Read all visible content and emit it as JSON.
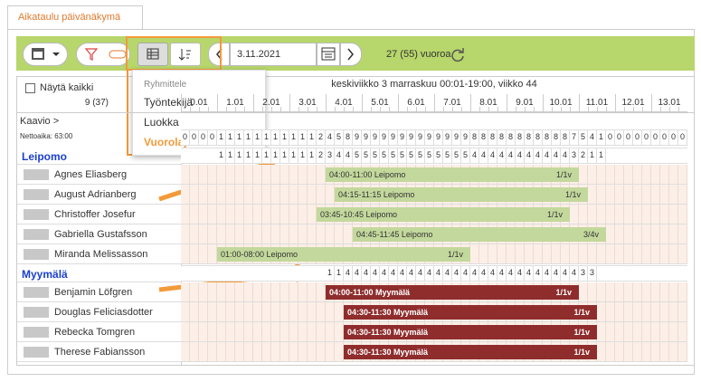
{
  "tab": "Aikataulu päivänäkymä",
  "toolbar": {
    "date": "3.11.2021",
    "shift_count": "27 (55) vuoroa"
  },
  "group_menu": {
    "title": "Ryhmittele",
    "options": [
      "Työntekijä",
      "Luokka",
      "Vuorolaji"
    ],
    "selected": "Vuorolaji"
  },
  "left_panel": {
    "show_all": "Näytä kaikki",
    "count": "9 (37)",
    "chart": "Kaavio",
    "net_time": "Nettoaika: 63:00"
  },
  "day_header": "keskiviikko 3 marraskuu 00:01-19:00, viikko 44",
  "hours": [
    "0.01",
    "1.01",
    "2.01",
    "3.01",
    "4.01",
    "5.01",
    "6.01",
    "7.01",
    "8.01",
    "9.01",
    "10.01",
    "11.01",
    "12.01",
    "13.01"
  ],
  "total_counts": [
    0,
    0,
    0,
    0,
    1,
    1,
    1,
    1,
    1,
    1,
    1,
    1,
    1,
    1,
    1,
    2,
    4,
    5,
    8,
    9,
    9,
    9,
    9,
    9,
    9,
    9,
    9,
    9,
    9,
    9,
    9,
    9,
    8,
    8,
    8,
    8,
    8,
    8,
    8,
    8,
    8,
    8,
    8,
    7,
    5,
    4,
    1,
    0,
    0,
    0,
    0,
    0,
    0,
    0,
    0,
    0
  ],
  "groups": [
    {
      "name": "Leipomo",
      "counts": [
        null,
        null,
        null,
        null,
        1,
        1,
        1,
        1,
        1,
        1,
        1,
        1,
        1,
        1,
        1,
        2,
        3,
        4,
        4,
        5,
        5,
        5,
        5,
        5,
        5,
        5,
        5,
        5,
        5,
        5,
        5,
        5,
        4,
        4,
        4,
        4,
        4,
        4,
        4,
        4,
        4,
        4,
        4,
        3,
        2,
        1,
        1,
        null,
        null,
        null,
        null,
        null,
        null,
        null,
        null,
        null
      ],
      "rows": [
        {
          "employee": "Agnes Eliasberg",
          "shift": "04:00-11:00 Leipomo",
          "units": "1/1v"
        },
        {
          "employee": "August Adrianberg",
          "shift": "04:15-11:15 Leipomo",
          "units": "1/1v"
        },
        {
          "employee": "Christoffer Josefur",
          "shift": "03:45-10:45 Leipomo",
          "units": "1/1v"
        },
        {
          "employee": "Gabriella Gustafsson",
          "shift": "04:45-11:45 Leipomo",
          "units": "3/4v"
        },
        {
          "employee": "Miranda Melissasson",
          "shift": "01:00-08:00 Leipomo",
          "units": "1/1v"
        }
      ]
    },
    {
      "name": "Myymälä",
      "counts": [
        null,
        null,
        null,
        null,
        null,
        null,
        null,
        null,
        null,
        null,
        null,
        null,
        null,
        null,
        null,
        null,
        1,
        1,
        4,
        4,
        4,
        4,
        4,
        4,
        4,
        4,
        4,
        4,
        4,
        4,
        4,
        4,
        4,
        4,
        4,
        4,
        4,
        4,
        4,
        4,
        4,
        4,
        4,
        4,
        3,
        3,
        null,
        null,
        null,
        null,
        null,
        null,
        null,
        null,
        null,
        null
      ],
      "rows": [
        {
          "employee": "Benjamin Löfgren",
          "shift": "04:00-11:00 Myymälä",
          "units": "1/1v"
        },
        {
          "employee": "Douglas Feliciasdotter",
          "shift": "04:30-11:30 Myymälä",
          "units": "1/1v"
        },
        {
          "employee": "Rebecka Tomgren",
          "shift": "04:30-11:30 Myymälä",
          "units": "1/1v"
        },
        {
          "employee": "Therese Fabiansson",
          "shift": "04:30-11:30 Myymälä",
          "units": "1/1v"
        }
      ]
    }
  ]
}
